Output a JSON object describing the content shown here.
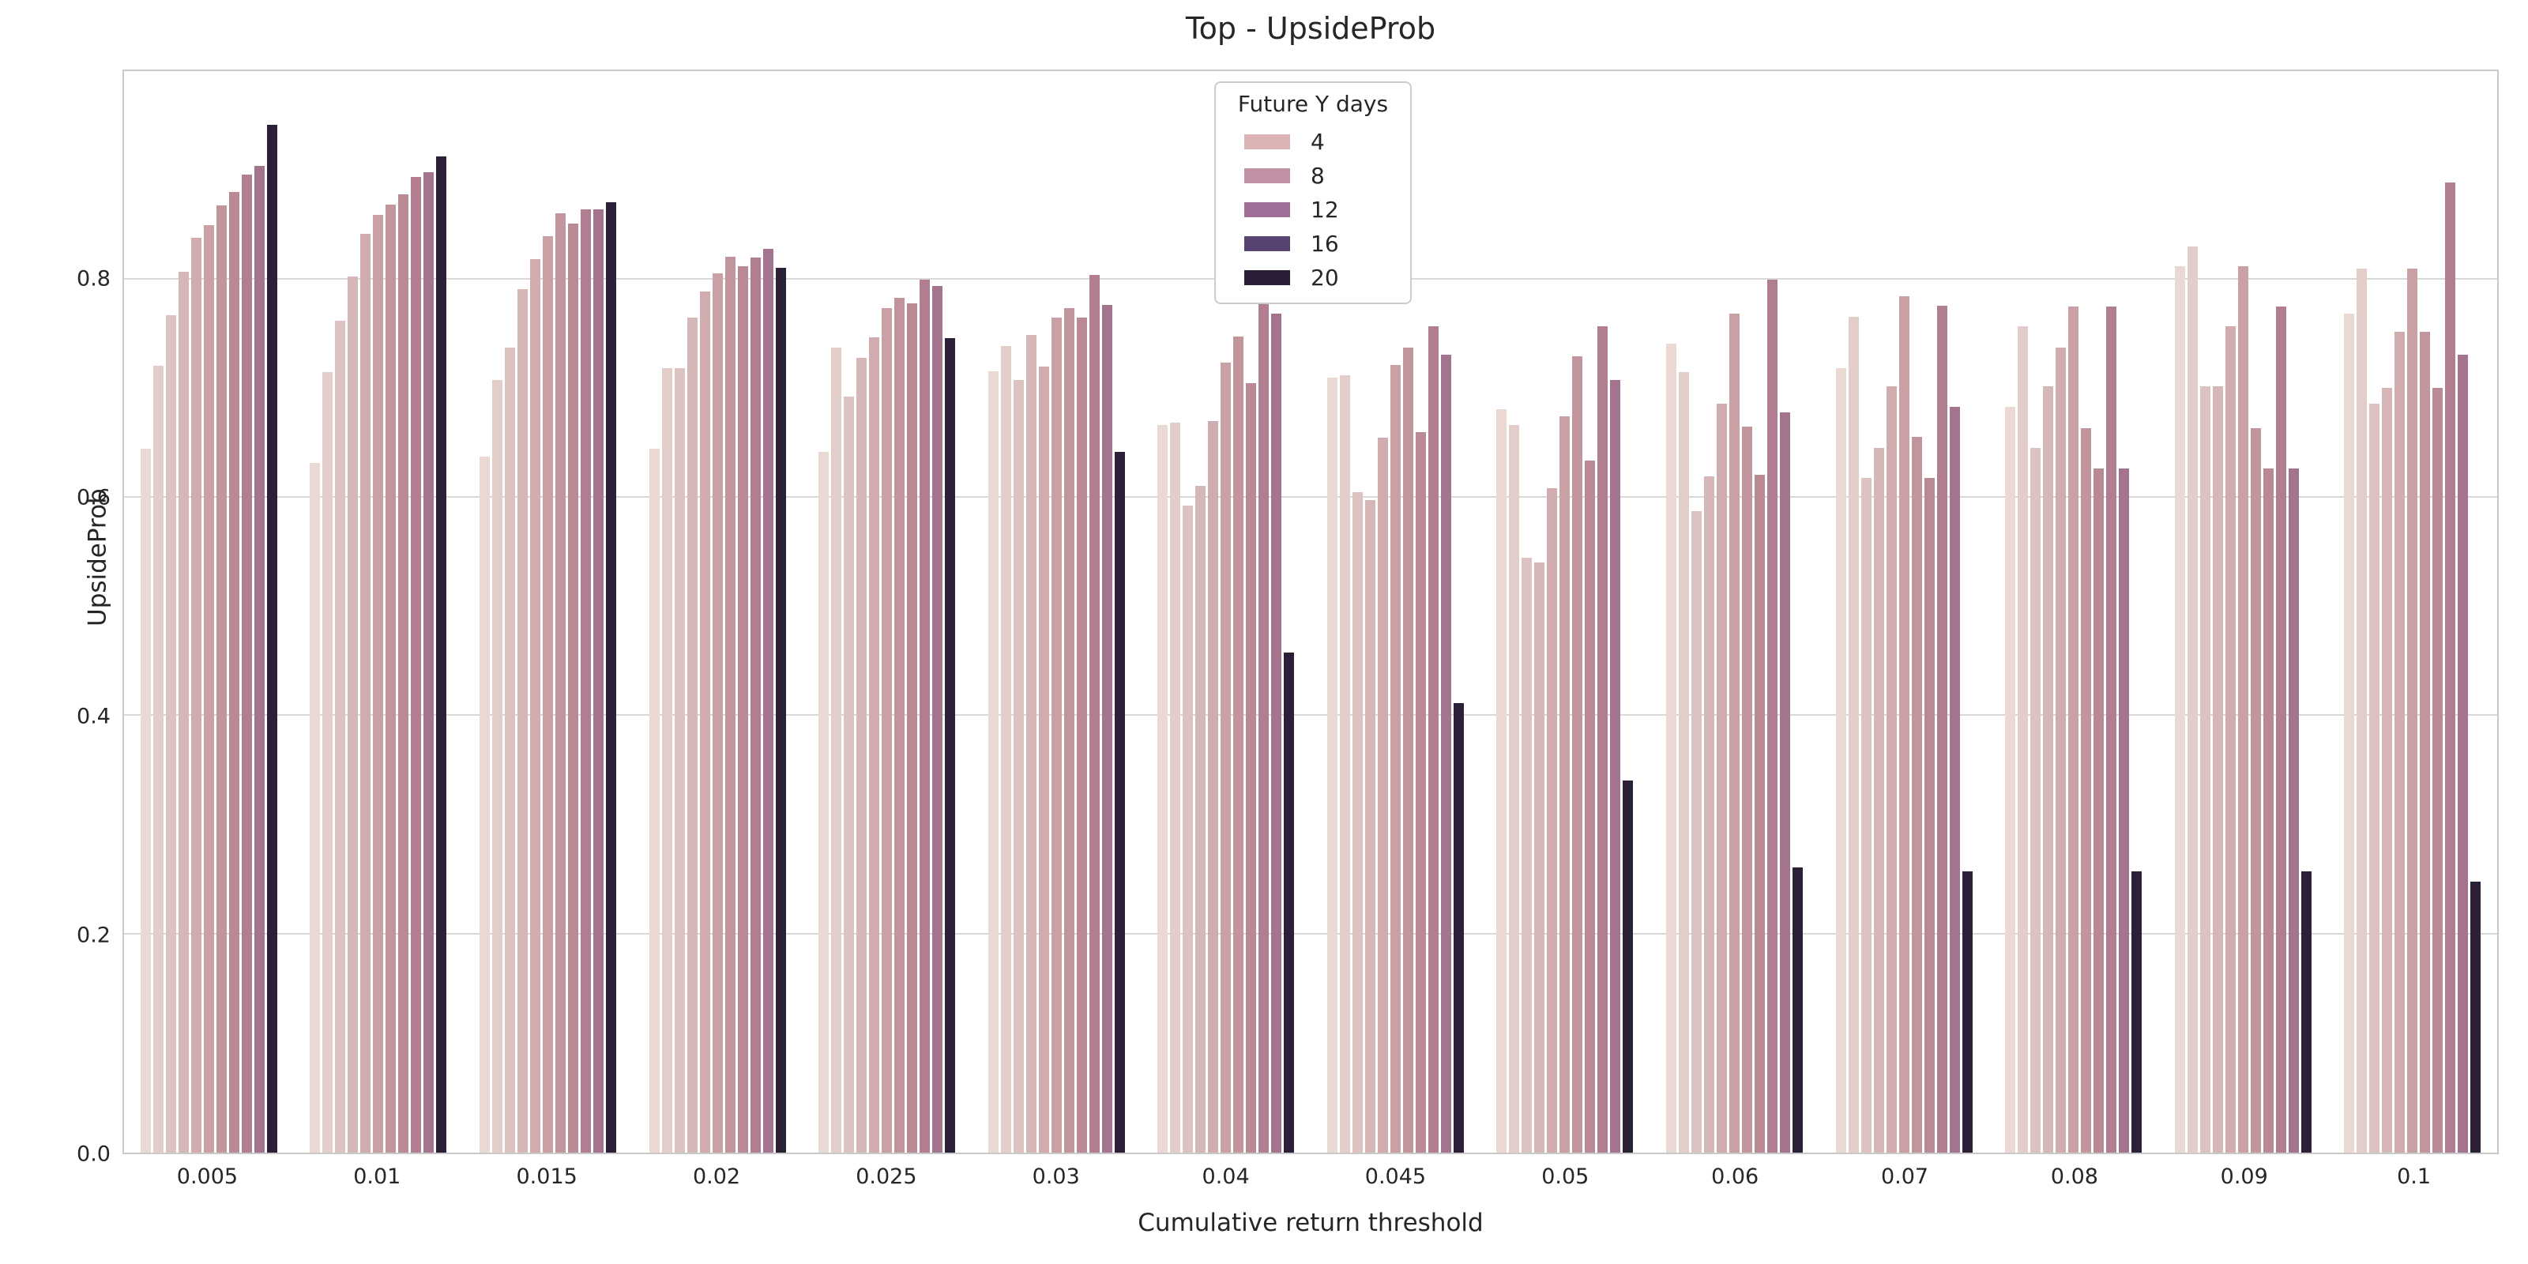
{
  "chart_data": {
    "type": "bar",
    "title": "Top - UpsideProb",
    "xlabel": "Cumulative return threshold",
    "ylabel": "UpsideProb",
    "legend_title": "Future Y days",
    "legend_position": "upper center",
    "grid": "horizontal",
    "categories": [
      "0.005",
      "0.01",
      "0.015",
      "0.02",
      "0.025",
      "0.03",
      "0.04",
      "0.045",
      "0.05",
      "0.06",
      "0.07",
      "0.08",
      "0.09",
      "0.1"
    ],
    "bars_per_group": 11,
    "bar_colors": [
      "#ead8d2",
      "#e3cdc9",
      "#dcc2c0",
      "#d6b7b7",
      "#d0acae",
      "#c9a1a5",
      "#c2959d",
      "#b98a94",
      "#b07e90",
      "#a4738e",
      "#2b2038"
    ],
    "legend_entries": [
      {
        "label": "4",
        "color": "#dcb3b5"
      },
      {
        "label": "8",
        "color": "#c290a4"
      },
      {
        "label": "12",
        "color": "#9f6d96"
      },
      {
        "label": "16",
        "color": "#594370"
      },
      {
        "label": "20",
        "color": "#291e36"
      }
    ],
    "series": [
      {
        "category": "0.005",
        "values": [
          0.645,
          0.721,
          0.767,
          0.807,
          0.838,
          0.85,
          0.868,
          0.88,
          0.896,
          0.904,
          0.942
        ]
      },
      {
        "category": "0.01",
        "values": [
          0.632,
          0.715,
          0.762,
          0.803,
          0.842,
          0.859,
          0.869,
          0.878,
          0.894,
          0.898,
          0.913
        ]
      },
      {
        "category": "0.015",
        "values": [
          0.638,
          0.708,
          0.738,
          0.791,
          0.819,
          0.84,
          0.861,
          0.851,
          0.864,
          0.864,
          0.871
        ]
      },
      {
        "category": "0.02",
        "values": [
          0.645,
          0.719,
          0.719,
          0.765,
          0.789,
          0.806,
          0.821,
          0.812,
          0.82,
          0.828,
          0.811
        ]
      },
      {
        "category": "0.025",
        "values": [
          0.642,
          0.738,
          0.693,
          0.728,
          0.747,
          0.774,
          0.783,
          0.778,
          0.8,
          0.794,
          0.746
        ]
      },
      {
        "category": "0.03",
        "values": [
          0.716,
          0.739,
          0.708,
          0.749,
          0.72,
          0.765,
          0.774,
          0.765,
          0.804,
          0.777,
          0.642
        ]
      },
      {
        "category": "0.04",
        "values": [
          0.667,
          0.669,
          0.593,
          0.611,
          0.67,
          0.724,
          0.748,
          0.705,
          0.789,
          0.769,
          0.458
        ]
      },
      {
        "category": "0.045",
        "values": [
          0.71,
          0.712,
          0.605,
          0.598,
          0.655,
          0.722,
          0.738,
          0.66,
          0.757,
          0.731,
          0.412
        ]
      },
      {
        "category": "0.05",
        "values": [
          0.681,
          0.667,
          0.545,
          0.541,
          0.609,
          0.675,
          0.73,
          0.634,
          0.757,
          0.708,
          0.341
        ]
      },
      {
        "category": "0.06",
        "values": [
          0.741,
          0.715,
          0.588,
          0.62,
          0.686,
          0.769,
          0.665,
          0.621,
          0.8,
          0.678,
          0.261
        ]
      },
      {
        "category": "0.07",
        "values": [
          0.719,
          0.766,
          0.618,
          0.646,
          0.702,
          0.785,
          0.656,
          0.618,
          0.776,
          0.683,
          0.258
        ]
      },
      {
        "category": "0.08",
        "values": [
          0.683,
          0.757,
          0.646,
          0.702,
          0.738,
          0.775,
          0.664,
          0.627,
          0.775,
          0.627,
          0.258
        ]
      },
      {
        "category": "0.09",
        "values": [
          0.812,
          0.83,
          0.702,
          0.702,
          0.757,
          0.812,
          0.664,
          0.627,
          0.775,
          0.627,
          0.258
        ]
      },
      {
        "category": "0.1",
        "values": [
          0.769,
          0.81,
          0.686,
          0.701,
          0.752,
          0.81,
          0.752,
          0.701,
          0.889,
          0.731,
          0.248
        ]
      }
    ],
    "yticks": [
      "0.0",
      "0.2",
      "0.4",
      "0.6",
      "0.8"
    ],
    "ylim": [
      0.0,
      0.991
    ],
    "axis_colors": {
      "grid": "#d8d8d8",
      "spine": "#c9c9c9",
      "text": "#262626"
    }
  }
}
